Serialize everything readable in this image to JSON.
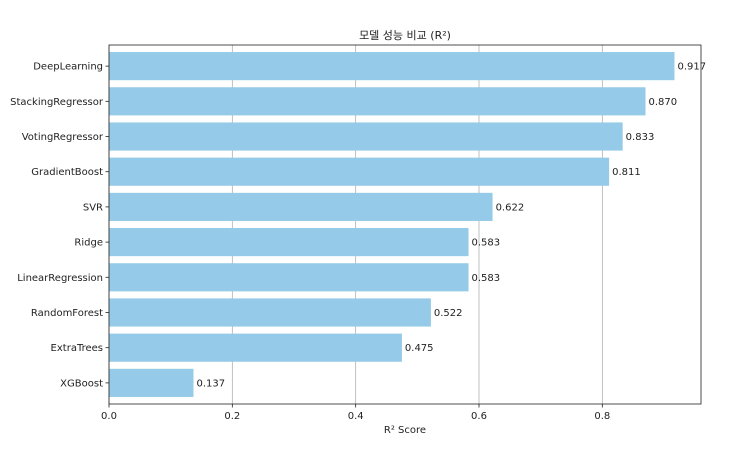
{
  "chart_data": {
    "type": "bar",
    "orientation": "horizontal",
    "title": "모델 성능 비교 (R²)",
    "xlabel": "R² Score",
    "ylabel": "",
    "categories": [
      "DeepLearning",
      "StackingRegressor",
      "VotingRegressor",
      "GradientBoost",
      "SVR",
      "Ridge",
      "LinearRegression",
      "RandomForest",
      "ExtraTrees",
      "XGBoost"
    ],
    "values": [
      0.917,
      0.87,
      0.833,
      0.811,
      0.622,
      0.583,
      0.583,
      0.522,
      0.475,
      0.137
    ],
    "value_labels": [
      "0.917",
      "0.870",
      "0.833",
      "0.811",
      "0.622",
      "0.583",
      "0.583",
      "0.522",
      "0.475",
      "0.137"
    ],
    "xlim": [
      0,
      0.96
    ],
    "xticks": [
      0.0,
      0.2,
      0.4,
      0.6,
      0.8
    ],
    "xtick_labels": [
      "0.0",
      "0.2",
      "0.4",
      "0.6",
      "0.8"
    ],
    "grid": "x",
    "bar_color": "#95cbe8",
    "grid_color": "#b0b0b0",
    "axis_color": "#222222"
  }
}
